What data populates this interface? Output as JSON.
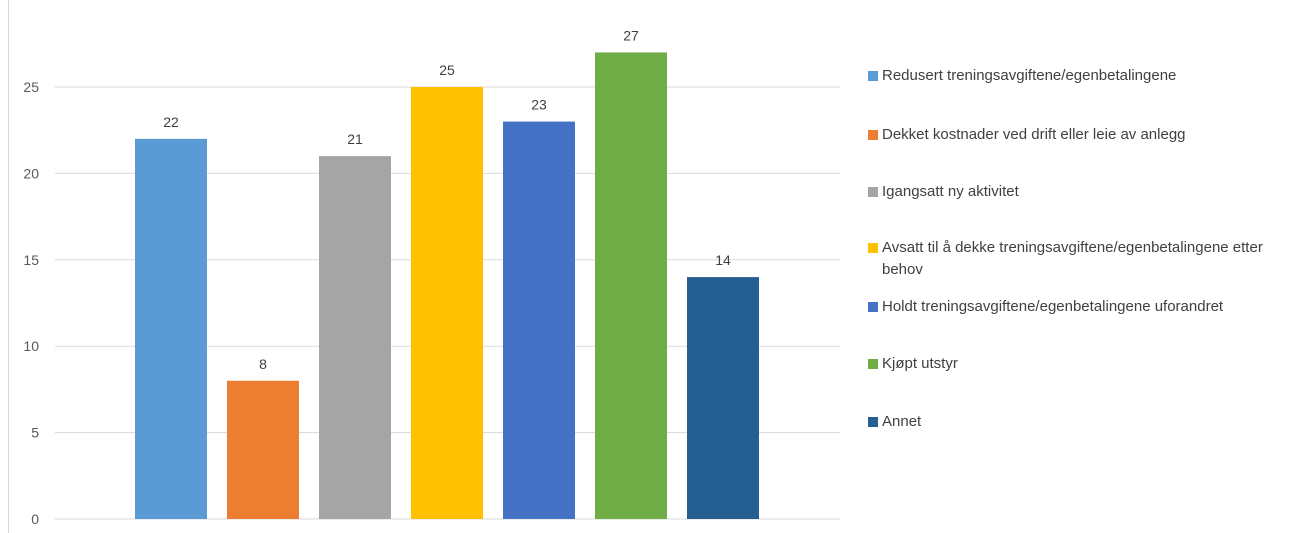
{
  "chart_data": {
    "type": "bar",
    "title": "",
    "xlabel": "",
    "ylabel": "",
    "ylim": [
      0,
      28
    ],
    "yticks": [
      0,
      5,
      10,
      15,
      20,
      25
    ],
    "grid": true,
    "legend_position": "right",
    "categories": [
      "Redusert treningsavgiftene/egenbetalingene",
      "Dekket kostnader ved drift eller leie av anlegg",
      "Igangsatt ny aktivitet",
      "Avsatt til å dekke treningsavgiftene/egenbetalingene etter behov",
      "Holdt treningsavgiftene/egenbetalingene uforandret",
      "Kjøpt utstyr",
      "Annet"
    ],
    "values": [
      22,
      8,
      21,
      25,
      23,
      27,
      14
    ],
    "colors": [
      "#5b9bd5",
      "#ed7d31",
      "#a5a5a5",
      "#ffc000",
      "#4472c4",
      "#70ad47",
      "#255e91"
    ],
    "legend": [
      {
        "label": "Redusert treningsavgiftene/egenbetalingene",
        "color": "#5b9bd5"
      },
      {
        "label": "Dekket kostnader ved drift eller leie av anlegg",
        "color": "#ed7d31"
      },
      {
        "label": "Igangsatt ny aktivitet",
        "color": "#a5a5a5"
      },
      {
        "label": "Avsatt til å dekke treningsavgiftene/egenbetalingene etter behov",
        "color": "#ffc000"
      },
      {
        "label": "Holdt treningsavgiftene/egenbetalingene uforandret",
        "color": "#4472c4"
      },
      {
        "label": "Kjøpt utstyr",
        "color": "#70ad47"
      },
      {
        "label": "Annet",
        "color": "#255e91"
      }
    ]
  }
}
